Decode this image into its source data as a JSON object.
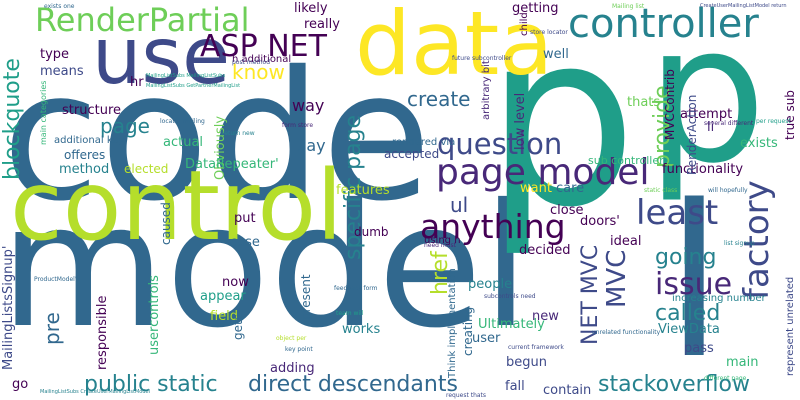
{
  "palette": [
    "#440154",
    "#482878",
    "#3e4a89",
    "#31688e",
    "#26828e",
    "#1f9e89",
    "#35b779",
    "#6ece58",
    "#b5de2b",
    "#fde725"
  ],
  "words": [
    {
      "text": "code",
      "color": "#31688e"
    },
    {
      "text": "model",
      "color": "#31688e"
    },
    {
      "text": "p",
      "color": "#1f9e89"
    },
    {
      "text": "p",
      "color": "#1f9e89"
    },
    {
      "text": "l",
      "color": "#31688e"
    },
    {
      "text": "control",
      "color": "#b5de2b"
    },
    {
      "text": "use",
      "color": "#3e4a89"
    },
    {
      "text": "data",
      "color": "#fde725"
    },
    {
      "text": "controller",
      "color": "#26828e"
    },
    {
      "text": "RenderPartial",
      "color": "#6ece58"
    },
    {
      "text": "page model",
      "color": "#482878"
    },
    {
      "text": "ASP NET",
      "color": "#440154"
    },
    {
      "text": "question",
      "color": "#3e4a89"
    },
    {
      "text": "factory",
      "color": "#3e4a89"
    },
    {
      "text": "anything",
      "color": "#440154"
    },
    {
      "text": "least",
      "color": "#3e4a89"
    },
    {
      "text": "direct descendants",
      "color": "#31688e"
    },
    {
      "text": "stackoverflow",
      "color": "#26828e"
    },
    {
      "text": "public static",
      "color": "#26828e"
    },
    {
      "text": "specific page",
      "color": "#26828e"
    },
    {
      "text": "blockquote",
      "color": "#1f9e89"
    },
    {
      "text": "NET MVC",
      "color": "#3e4a89"
    },
    {
      "text": "issue",
      "color": "#482878"
    },
    {
      "text": "MVC",
      "color": "#3e4a89"
    },
    {
      "text": "going",
      "color": "#26828e"
    },
    {
      "text": "called",
      "color": "#26828e"
    },
    {
      "text": "provide",
      "color": "#6ece58"
    },
    {
      "text": "create",
      "color": "#31688e"
    },
    {
      "text": "page",
      "color": "#26828e"
    },
    {
      "text": "know",
      "color": "#fde725"
    },
    {
      "text": "href",
      "color": "#b5de2b"
    },
    {
      "text": "pre",
      "color": "#31688e"
    },
    {
      "text": "ul",
      "color": "#3e4a89"
    },
    {
      "text": "way",
      "color": "#440154"
    },
    {
      "text": "say",
      "color": "#31688e"
    },
    {
      "text": "structure",
      "color": "#440154"
    },
    {
      "text": "actual",
      "color": "#35b779"
    },
    {
      "text": "Obviously",
      "color": "#6ece58"
    },
    {
      "text": "DataRepeater'",
      "color": "#35b779"
    },
    {
      "text": "method",
      "color": "#26828e"
    },
    {
      "text": "features",
      "color": "#b5de2b"
    },
    {
      "text": "functionality",
      "color": "#440154"
    },
    {
      "text": "exists",
      "color": "#35b779"
    },
    {
      "text": "attempt",
      "color": "#440154"
    },
    {
      "text": "thats",
      "color": "#6ece58"
    },
    {
      "text": "li",
      "color": "#482878"
    },
    {
      "text": "want",
      "color": "#fde725"
    },
    {
      "text": "care",
      "color": "#31688e"
    },
    {
      "text": "close",
      "color": "#440154"
    },
    {
      "text": "ideal",
      "color": "#440154"
    },
    {
      "text": "doors'",
      "color": "#440154"
    },
    {
      "text": "decided",
      "color": "#440154"
    },
    {
      "text": "people",
      "color": "#26828e"
    },
    {
      "text": "user",
      "color": "#31688e"
    },
    {
      "text": "new",
      "color": "#482878"
    },
    {
      "text": "works",
      "color": "#26828e"
    },
    {
      "text": "now",
      "color": "#440154"
    },
    {
      "text": "put",
      "color": "#440154"
    },
    {
      "text": "case",
      "color": "#31688e"
    },
    {
      "text": "appear",
      "color": "#1f9e89"
    },
    {
      "text": "field",
      "color": "#b5de2b"
    },
    {
      "text": "present",
      "color": "#31688e"
    },
    {
      "text": "adding",
      "color": "#482878"
    },
    {
      "text": "fall",
      "color": "#3e4a89"
    },
    {
      "text": "contain",
      "color": "#3e4a89"
    },
    {
      "text": "begun",
      "color": "#3e4a89"
    },
    {
      "text": "pass",
      "color": "#3e4a89"
    },
    {
      "text": "main",
      "color": "#35b779"
    },
    {
      "text": "ViewData",
      "color": "#26828e"
    },
    {
      "text": "Ultimately",
      "color": "#35b779"
    },
    {
      "text": "creating",
      "color": "#31688e"
    },
    {
      "text": "usercontrols",
      "color": "#35b779"
    },
    {
      "text": "responsible",
      "color": "#440154"
    },
    {
      "text": "MailingListsSignup'",
      "color": "#3e4a89"
    },
    {
      "text": "go",
      "color": "#440154"
    },
    {
      "text": "likely",
      "color": "#440154"
    },
    {
      "text": "really",
      "color": "#440154"
    },
    {
      "text": "getting",
      "color": "#440154"
    },
    {
      "text": "type",
      "color": "#440154"
    },
    {
      "text": "means",
      "color": "#3e4a89"
    },
    {
      "text": "hr",
      "color": "#440154"
    },
    {
      "text": "well",
      "color": "#31688e"
    },
    {
      "text": "low level",
      "color": "#482878"
    },
    {
      "text": "RenderAction",
      "color": "#3e4a89"
    },
    {
      "text": "MVCContrib",
      "color": "#440154"
    },
    {
      "text": "true sub",
      "color": "#440154"
    },
    {
      "text": "offeres",
      "color": "#31688e"
    },
    {
      "text": "additional key",
      "color": "#31688e"
    },
    {
      "text": "elected",
      "color": "#b5de2b"
    },
    {
      "text": "gets",
      "color": "#31688e"
    },
    {
      "text": "caused",
      "color": "#31688e"
    },
    {
      "text": "dumb",
      "color": "#440154"
    },
    {
      "text": "accepted",
      "color": "#3e4a89"
    },
    {
      "text": "sub controller",
      "color": "#35b779"
    },
    {
      "text": "increasing number",
      "color": "#26828e"
    },
    {
      "text": "represent unrelated",
      "color": "#3e4a89"
    },
    {
      "text": "arbitrary bit",
      "color": "#482878"
    },
    {
      "text": "child",
      "color": "#440154"
    },
    {
      "text": "rendered via",
      "color": "#31688e"
    },
    {
      "text": "Think implementation",
      "color": "#31688e"
    },
    {
      "text": "using h",
      "color": "#440154"
    },
    {
      "text": "h additional",
      "color": "#440154"
    },
    {
      "text": "main categories",
      "color": "#35b779"
    },
    {
      "text": "locator mailing",
      "color": "#31688e"
    },
    {
      "text": "form store",
      "color": "#482878"
    },
    {
      "text": "store locator",
      "color": "#3e4a89"
    },
    {
      "text": "Mailing list",
      "color": "#6ece58"
    },
    {
      "text": "future subcontroller",
      "color": "#3e4a89"
    },
    {
      "text": "several different",
      "color": "#482878"
    },
    {
      "text": "per request",
      "color": "#1f9e89"
    },
    {
      "text": "unrelated functionality",
      "color": "#31688e"
    },
    {
      "text": "current framework",
      "color": "#3e4a89"
    },
    {
      "text": "key point",
      "color": "#31688e"
    },
    {
      "text": "team will",
      "color": "#1f9e89"
    },
    {
      "text": "static class",
      "color": "#6ece58"
    },
    {
      "text": "will hopefully",
      "color": "#31688e"
    },
    {
      "text": "need must",
      "color": "#482878"
    },
    {
      "text": "subcontrols need",
      "color": "#3e4a89"
    },
    {
      "text": "feedback form",
      "color": "#31688e"
    },
    {
      "text": "request thats",
      "color": "#3e4a89"
    },
    {
      "text": "different page",
      "color": "#35b779"
    },
    {
      "text": "exists one",
      "color": "#31688e"
    },
    {
      "text": "list signup",
      "color": "#26828e"
    },
    {
      "text": "post method",
      "color": "#3e4a89"
    },
    {
      "text": "object per",
      "color": "#b5de2b"
    },
    {
      "text": "return new",
      "color": "#26828e"
    },
    {
      "text": "ProductModel'",
      "color": "#31688e"
    },
    {
      "text": "MailingListSubs GetPartnerMailingList",
      "color": "#1f9e89"
    },
    {
      "text": "MailingListSubs MailingListSubs",
      "color": "#1f9e89"
    },
    {
      "text": "CreateUserMailingListModel return",
      "color": "#3e4a89"
    },
    {
      "text": "MailingListSubs CreateUserMailingListModel",
      "color": "#26828e"
    }
  ]
}
